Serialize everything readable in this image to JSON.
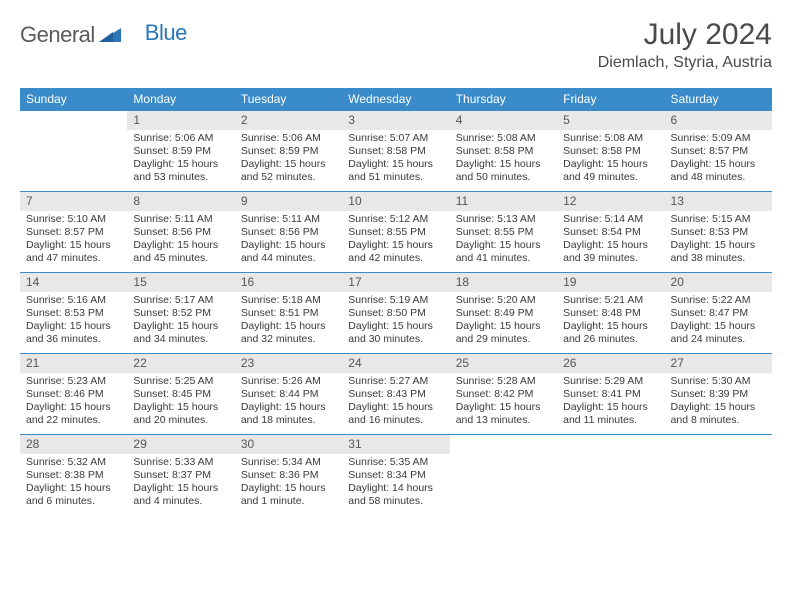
{
  "logo": {
    "text_general": "General",
    "text_blue": "Blue"
  },
  "title": "July 2024",
  "location": "Diemlach, Styria, Austria",
  "colors": {
    "header_bg": "#3a8bc9",
    "header_text": "#ffffff",
    "daynum_bg": "#e8e8e8",
    "daynum_text": "#555555",
    "body_text": "#3a3a3a",
    "divider": "#3a8bc9",
    "logo_gray": "#5a5a5a",
    "logo_blue": "#2a76b8"
  },
  "day_labels": [
    "Sunday",
    "Monday",
    "Tuesday",
    "Wednesday",
    "Thursday",
    "Friday",
    "Saturday"
  ],
  "weeks": [
    [
      {
        "empty": true
      },
      {
        "num": "1",
        "sunrise": "5:06 AM",
        "sunset": "8:59 PM",
        "daylight": "15 hours and 53 minutes."
      },
      {
        "num": "2",
        "sunrise": "5:06 AM",
        "sunset": "8:59 PM",
        "daylight": "15 hours and 52 minutes."
      },
      {
        "num": "3",
        "sunrise": "5:07 AM",
        "sunset": "8:58 PM",
        "daylight": "15 hours and 51 minutes."
      },
      {
        "num": "4",
        "sunrise": "5:08 AM",
        "sunset": "8:58 PM",
        "daylight": "15 hours and 50 minutes."
      },
      {
        "num": "5",
        "sunrise": "5:08 AM",
        "sunset": "8:58 PM",
        "daylight": "15 hours and 49 minutes."
      },
      {
        "num": "6",
        "sunrise": "5:09 AM",
        "sunset": "8:57 PM",
        "daylight": "15 hours and 48 minutes."
      }
    ],
    [
      {
        "num": "7",
        "sunrise": "5:10 AM",
        "sunset": "8:57 PM",
        "daylight": "15 hours and 47 minutes."
      },
      {
        "num": "8",
        "sunrise": "5:11 AM",
        "sunset": "8:56 PM",
        "daylight": "15 hours and 45 minutes."
      },
      {
        "num": "9",
        "sunrise": "5:11 AM",
        "sunset": "8:56 PM",
        "daylight": "15 hours and 44 minutes."
      },
      {
        "num": "10",
        "sunrise": "5:12 AM",
        "sunset": "8:55 PM",
        "daylight": "15 hours and 42 minutes."
      },
      {
        "num": "11",
        "sunrise": "5:13 AM",
        "sunset": "8:55 PM",
        "daylight": "15 hours and 41 minutes."
      },
      {
        "num": "12",
        "sunrise": "5:14 AM",
        "sunset": "8:54 PM",
        "daylight": "15 hours and 39 minutes."
      },
      {
        "num": "13",
        "sunrise": "5:15 AM",
        "sunset": "8:53 PM",
        "daylight": "15 hours and 38 minutes."
      }
    ],
    [
      {
        "num": "14",
        "sunrise": "5:16 AM",
        "sunset": "8:53 PM",
        "daylight": "15 hours and 36 minutes."
      },
      {
        "num": "15",
        "sunrise": "5:17 AM",
        "sunset": "8:52 PM",
        "daylight": "15 hours and 34 minutes."
      },
      {
        "num": "16",
        "sunrise": "5:18 AM",
        "sunset": "8:51 PM",
        "daylight": "15 hours and 32 minutes."
      },
      {
        "num": "17",
        "sunrise": "5:19 AM",
        "sunset": "8:50 PM",
        "daylight": "15 hours and 30 minutes."
      },
      {
        "num": "18",
        "sunrise": "5:20 AM",
        "sunset": "8:49 PM",
        "daylight": "15 hours and 29 minutes."
      },
      {
        "num": "19",
        "sunrise": "5:21 AM",
        "sunset": "8:48 PM",
        "daylight": "15 hours and 26 minutes."
      },
      {
        "num": "20",
        "sunrise": "5:22 AM",
        "sunset": "8:47 PM",
        "daylight": "15 hours and 24 minutes."
      }
    ],
    [
      {
        "num": "21",
        "sunrise": "5:23 AM",
        "sunset": "8:46 PM",
        "daylight": "15 hours and 22 minutes."
      },
      {
        "num": "22",
        "sunrise": "5:25 AM",
        "sunset": "8:45 PM",
        "daylight": "15 hours and 20 minutes."
      },
      {
        "num": "23",
        "sunrise": "5:26 AM",
        "sunset": "8:44 PM",
        "daylight": "15 hours and 18 minutes."
      },
      {
        "num": "24",
        "sunrise": "5:27 AM",
        "sunset": "8:43 PM",
        "daylight": "15 hours and 16 minutes."
      },
      {
        "num": "25",
        "sunrise": "5:28 AM",
        "sunset": "8:42 PM",
        "daylight": "15 hours and 13 minutes."
      },
      {
        "num": "26",
        "sunrise": "5:29 AM",
        "sunset": "8:41 PM",
        "daylight": "15 hours and 11 minutes."
      },
      {
        "num": "27",
        "sunrise": "5:30 AM",
        "sunset": "8:39 PM",
        "daylight": "15 hours and 8 minutes."
      }
    ],
    [
      {
        "num": "28",
        "sunrise": "5:32 AM",
        "sunset": "8:38 PM",
        "daylight": "15 hours and 6 minutes."
      },
      {
        "num": "29",
        "sunrise": "5:33 AM",
        "sunset": "8:37 PM",
        "daylight": "15 hours and 4 minutes."
      },
      {
        "num": "30",
        "sunrise": "5:34 AM",
        "sunset": "8:36 PM",
        "daylight": "15 hours and 1 minute."
      },
      {
        "num": "31",
        "sunrise": "5:35 AM",
        "sunset": "8:34 PM",
        "daylight": "14 hours and 58 minutes."
      },
      {
        "empty": true
      },
      {
        "empty": true
      },
      {
        "empty": true
      }
    ]
  ],
  "labels": {
    "sunrise": "Sunrise:",
    "sunset": "Sunset:",
    "daylight": "Daylight:"
  }
}
